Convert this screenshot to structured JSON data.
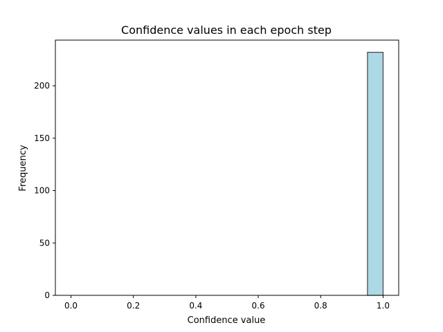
{
  "chart_data": {
    "type": "bar",
    "title": "Confidence values in each epoch step",
    "xlabel": "Confidence value",
    "ylabel": "Frequency",
    "xlim": [
      -0.05,
      1.05
    ],
    "ylim": [
      0,
      243.6
    ],
    "xticks": [
      0.0,
      0.2,
      0.4,
      0.6,
      0.8,
      1.0
    ],
    "xtick_labels": [
      "0.0",
      "0.2",
      "0.4",
      "0.6",
      "0.8",
      "1.0"
    ],
    "yticks": [
      0,
      50,
      100,
      150,
      200
    ],
    "ytick_labels": [
      "0",
      "50",
      "100",
      "150",
      "200"
    ],
    "bins": [
      {
        "x0": 0.95,
        "x1": 1.0,
        "count": 232
      }
    ],
    "colors": {
      "bar_fill": "#add8e6",
      "bar_edge": "#404040"
    },
    "grid": false,
    "legend": "none"
  }
}
